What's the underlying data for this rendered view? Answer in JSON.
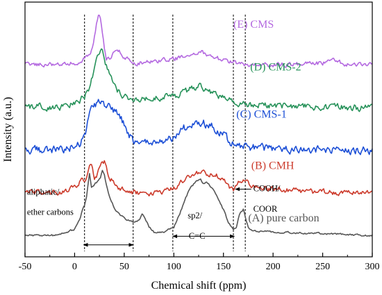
{
  "chart_data": {
    "type": "line",
    "title": "",
    "xlabel": "Chemical shift (ppm)",
    "ylabel": "Intensity (a.u.)",
    "xlim": [
      -50,
      300
    ],
    "x_ticks": [
      -50,
      0,
      50,
      100,
      150,
      200,
      250,
      300
    ],
    "y_ticks_shown": false,
    "grid": false,
    "legend": "none",
    "series": [
      {
        "name": "(E) CMS",
        "color": "#b469e0",
        "noise": 0.8,
        "points": [
          [
            -50,
            40
          ],
          [
            -10,
            40
          ],
          [
            0,
            40.3
          ],
          [
            5,
            40.5
          ],
          [
            10,
            41.5
          ],
          [
            15,
            42.3
          ],
          [
            18,
            43.5
          ],
          [
            20,
            46
          ],
          [
            22,
            49.5
          ],
          [
            24,
            51.5
          ],
          [
            26,
            50.5
          ],
          [
            28,
            47
          ],
          [
            30,
            43.5
          ],
          [
            32,
            41
          ],
          [
            35,
            41.3
          ],
          [
            40,
            42.5
          ],
          [
            45,
            43
          ],
          [
            50,
            41.8
          ],
          [
            55,
            40.8
          ],
          [
            60,
            40.2
          ],
          [
            80,
            40.6
          ],
          [
            100,
            41.2
          ],
          [
            120,
            42.2
          ],
          [
            128,
            42.8
          ],
          [
            135,
            42.2
          ],
          [
            150,
            40.8
          ],
          [
            170,
            40
          ],
          [
            200,
            39.8
          ],
          [
            250,
            40.2
          ],
          [
            260,
            41.2
          ],
          [
            270,
            40.1
          ],
          [
            300,
            39.8
          ]
        ]
      },
      {
        "name": "(D) CMS-2",
        "color": "#27925a",
        "noise": 1.2,
        "points": [
          [
            -50,
            30
          ],
          [
            -10,
            30
          ],
          [
            0,
            30.8
          ],
          [
            5,
            31.3
          ],
          [
            10,
            32.5
          ],
          [
            15,
            34.5
          ],
          [
            18,
            37
          ],
          [
            20,
            39.5
          ],
          [
            23,
            42
          ],
          [
            26,
            43.5
          ],
          [
            28,
            43
          ],
          [
            30,
            41.5
          ],
          [
            33,
            39
          ],
          [
            36,
            37
          ],
          [
            40,
            35
          ],
          [
            45,
            33.5
          ],
          [
            50,
            32.5
          ],
          [
            60,
            31.5
          ],
          [
            80,
            32
          ],
          [
            100,
            32.5
          ],
          [
            115,
            34
          ],
          [
            125,
            35
          ],
          [
            135,
            34
          ],
          [
            150,
            32
          ],
          [
            165,
            31
          ],
          [
            180,
            30.5
          ],
          [
            200,
            30.3
          ],
          [
            250,
            30
          ],
          [
            300,
            29.8
          ]
        ]
      },
      {
        "name": "(C) CMS-1",
        "color": "#1c4fd6",
        "noise": 1.4,
        "points": [
          [
            -50,
            20
          ],
          [
            -10,
            20
          ],
          [
            0,
            20.8
          ],
          [
            5,
            21.5
          ],
          [
            10,
            23
          ],
          [
            13,
            26
          ],
          [
            16,
            29
          ],
          [
            20,
            30.5
          ],
          [
            25,
            31
          ],
          [
            30,
            30.5
          ],
          [
            35,
            30
          ],
          [
            40,
            29
          ],
          [
            45,
            28
          ],
          [
            50,
            26
          ],
          [
            55,
            23.5
          ],
          [
            60,
            22
          ],
          [
            70,
            21.5
          ],
          [
            80,
            21.5
          ],
          [
            90,
            21.8
          ],
          [
            100,
            23
          ],
          [
            110,
            25
          ],
          [
            120,
            26
          ],
          [
            130,
            26.2
          ],
          [
            140,
            25.3
          ],
          [
            150,
            23.5
          ],
          [
            158,
            21.5
          ],
          [
            165,
            20.8
          ],
          [
            180,
            20.5
          ],
          [
            200,
            20.2
          ],
          [
            250,
            20
          ],
          [
            300,
            19.8
          ]
        ]
      },
      {
        "name": "(B) CMH",
        "color": "#cc3b2c",
        "noise": 1.0,
        "points": [
          [
            -50,
            10
          ],
          [
            -15,
            10
          ],
          [
            -5,
            10.5
          ],
          [
            0,
            11.5
          ],
          [
            5,
            12.5
          ],
          [
            8,
            13
          ],
          [
            10,
            12.5
          ],
          [
            12,
            13.5
          ],
          [
            15,
            17
          ],
          [
            17,
            16
          ],
          [
            20,
            13.5
          ],
          [
            23,
            14.5
          ],
          [
            26,
            16.5
          ],
          [
            30,
            17
          ],
          [
            33,
            15
          ],
          [
            36,
            13.5
          ],
          [
            40,
            12.5
          ],
          [
            45,
            11
          ],
          [
            50,
            10.5
          ],
          [
            60,
            10
          ],
          [
            75,
            9.5
          ],
          [
            90,
            10
          ],
          [
            100,
            11
          ],
          [
            108,
            12.5
          ],
          [
            115,
            14
          ],
          [
            120,
            14.5
          ],
          [
            130,
            14.5
          ],
          [
            140,
            14.5
          ],
          [
            148,
            13.5
          ],
          [
            155,
            11.5
          ],
          [
            160,
            10.5
          ],
          [
            165,
            12
          ],
          [
            170,
            13
          ],
          [
            175,
            12
          ],
          [
            180,
            11.5
          ],
          [
            190,
            11
          ],
          [
            200,
            10.8
          ],
          [
            230,
            10.3
          ],
          [
            260,
            10
          ],
          [
            300,
            9.8
          ]
        ]
      },
      {
        "name": "(A) pure carbon",
        "color": "#555555",
        "noise": 0.35,
        "points": [
          [
            -50,
            0
          ],
          [
            -20,
            0
          ],
          [
            -10,
            0.5
          ],
          [
            0,
            1.5
          ],
          [
            5,
            3.5
          ],
          [
            8,
            6
          ],
          [
            10,
            7
          ],
          [
            12,
            9
          ],
          [
            15,
            14.5
          ],
          [
            17,
            11.5
          ],
          [
            20,
            12
          ],
          [
            23,
            12.5
          ],
          [
            26,
            13.5
          ],
          [
            28,
            15
          ],
          [
            30,
            14
          ],
          [
            33,
            11
          ],
          [
            36,
            8.5
          ],
          [
            40,
            6.5
          ],
          [
            45,
            5
          ],
          [
            50,
            4
          ],
          [
            55,
            3.5
          ],
          [
            60,
            3
          ],
          [
            65,
            3.5
          ],
          [
            68,
            5
          ],
          [
            72,
            3.5
          ],
          [
            75,
            2
          ],
          [
            80,
            0.8
          ],
          [
            90,
            0.8
          ],
          [
            100,
            2
          ],
          [
            105,
            4.5
          ],
          [
            110,
            7.5
          ],
          [
            115,
            10.5
          ],
          [
            120,
            12
          ],
          [
            123,
            13
          ],
          [
            127,
            13
          ],
          [
            130,
            12
          ],
          [
            133,
            12.5
          ],
          [
            137,
            11.5
          ],
          [
            140,
            10.5
          ],
          [
            145,
            8.5
          ],
          [
            150,
            6
          ],
          [
            155,
            3
          ],
          [
            160,
            1.5
          ],
          [
            163,
            1.8
          ],
          [
            166,
            5
          ],
          [
            170,
            6
          ],
          [
            173,
            3.5
          ],
          [
            176,
            1.5
          ],
          [
            180,
            1
          ],
          [
            190,
            1
          ],
          [
            200,
            0.8
          ],
          [
            250,
            0.4
          ],
          [
            300,
            0
          ]
        ]
      }
    ],
    "series_labels": [
      {
        "text": "(E) CMS",
        "series": 0,
        "x": 160,
        "y": 48.5
      },
      {
        "text": "(D) CMS-2",
        "series": 1,
        "x": 177,
        "y": 38.5
      },
      {
        "text": "(C) CMS-1",
        "series": 2,
        "x": 163,
        "y": 27.5
      },
      {
        "text": "(B) CMH",
        "series": 3,
        "x": 178,
        "y": 15.5
      },
      {
        "text": "(A) pure carbon",
        "series": 4,
        "x": 175,
        "y": 3.3
      }
    ],
    "reference_lines_x": [
      10,
      59,
      99,
      160,
      172
    ],
    "annotations": [
      {
        "text": "aliphatic/",
        "x": -48,
        "y": 9.5
      },
      {
        "text": "ether carbons",
        "x": -48,
        "y": 4.8
      },
      {
        "text": "sp2/",
        "x": 114,
        "y": 4.0
      },
      {
        "text": "C=C",
        "x": 115,
        "y": -0.8
      },
      {
        "text": "COOH/",
        "x": 180,
        "y": 10.3
      },
      {
        "text": "COOR",
        "x": 180,
        "y": 5.5
      }
    ],
    "arrows": [
      {
        "from": [
          9,
          -2.2
        ],
        "to": [
          59,
          -2.2
        ],
        "heads": "both"
      },
      {
        "from": [
          99,
          -0.2
        ],
        "to": [
          161,
          -0.2
        ],
        "heads": "both"
      },
      {
        "from": [
          178,
          10.8
        ],
        "to": [
          162,
          10.8
        ],
        "heads": "end"
      }
    ]
  }
}
